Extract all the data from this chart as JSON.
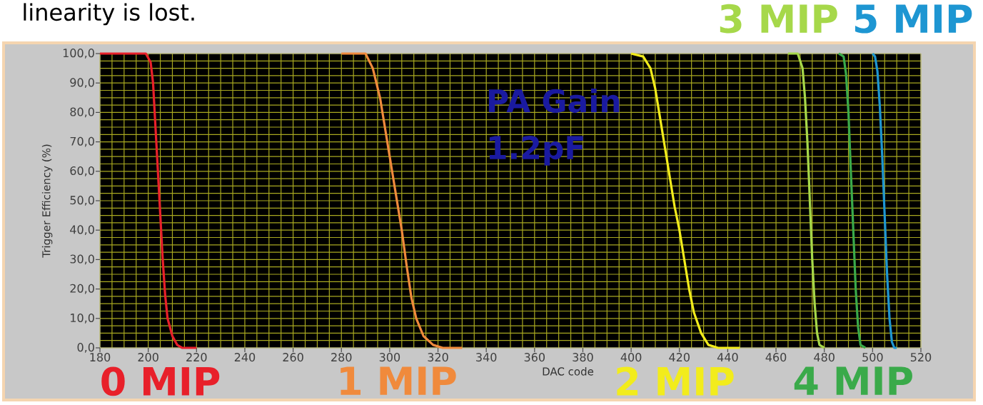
{
  "chart_data": {
    "type": "line",
    "xlabel": "DAC code",
    "ylabel": "Trigger Efficiency (%)",
    "xlim": [
      180,
      520
    ],
    "xticks": [
      180,
      {
        "value": 185,
        "label": null
      },
      {
        "value": 190,
        "label": null
      },
      {
        "value": 195,
        "label": null
      },
      200,
      {
        "value": 205,
        "label": null
      },
      {
        "value": 210,
        "label": null
      },
      {
        "value": 215,
        "label": null
      },
      220,
      {
        "value": 225,
        "label": null
      },
      {
        "value": 230,
        "label": null
      },
      {
        "value": 235,
        "label": null
      },
      240,
      {
        "value": 245,
        "label": null
      },
      {
        "value": 250,
        "label": null
      },
      {
        "value": 255,
        "label": null
      },
      260,
      {
        "value": 265,
        "label": null
      },
      {
        "value": 270,
        "label": null
      },
      {
        "value": 275,
        "label": null
      },
      280,
      {
        "value": 285,
        "label": null
      },
      {
        "value": 290,
        "label": null
      },
      {
        "value": 295,
        "label": null
      },
      300,
      {
        "value": 305,
        "label": null
      },
      {
        "value": 310,
        "label": null
      },
      {
        "value": 315,
        "label": null
      },
      320,
      {
        "value": 325,
        "label": null
      },
      {
        "value": 330,
        "label": null
      },
      {
        "value": 335,
        "label": null
      },
      340,
      {
        "value": 345,
        "label": null
      },
      {
        "value": 350,
        "label": null
      },
      {
        "value": 355,
        "label": null
      },
      360,
      {
        "value": 365,
        "label": null
      },
      {
        "value": 370,
        "label": null
      },
      {
        "value": 375,
        "label": null
      },
      380,
      {
        "value": 385,
        "label": null
      },
      {
        "value": 390,
        "label": null
      },
      {
        "value": 395,
        "label": null
      },
      400,
      {
        "value": 405,
        "label": null
      },
      {
        "value": 410,
        "label": null
      },
      {
        "value": 415,
        "label": null
      },
      420,
      {
        "value": 425,
        "label": null
      },
      {
        "value": 430,
        "label": null
      },
      {
        "value": 435,
        "label": null
      },
      440,
      {
        "value": 445,
        "label": null
      },
      {
        "value": 450,
        "label": null
      },
      {
        "value": 455,
        "label": null
      },
      460,
      {
        "value": 465,
        "label": null
      },
      {
        "value": 470,
        "label": null
      },
      {
        "value": 475,
        "label": null
      },
      480,
      {
        "value": 485,
        "label": null
      },
      {
        "value": 490,
        "label": null
      },
      {
        "value": 495,
        "label": null
      },
      500,
      {
        "value": 505,
        "label": null
      },
      {
        "value": 510,
        "label": null
      },
      {
        "value": 515,
        "label": null
      },
      520
    ],
    "ylim": [
      0,
      100
    ],
    "yticks": [
      {
        "value": 0,
        "label": "0,0"
      },
      {
        "value": 2.5,
        "label": null
      },
      {
        "value": 5,
        "label": null
      },
      {
        "value": 7.5,
        "label": null
      },
      {
        "value": 10,
        "label": "10,0"
      },
      {
        "value": 12.5,
        "label": null
      },
      {
        "value": 15,
        "label": null
      },
      {
        "value": 17.5,
        "label": null
      },
      {
        "value": 20,
        "label": "20,0"
      },
      {
        "value": 22.5,
        "label": null
      },
      {
        "value": 25,
        "label": null
      },
      {
        "value": 27.5,
        "label": null
      },
      {
        "value": 30,
        "label": "30,0"
      },
      {
        "value": 32.5,
        "label": null
      },
      {
        "value": 35,
        "label": null
      },
      {
        "value": 37.5,
        "label": null
      },
      {
        "value": 40,
        "label": "40,0"
      },
      {
        "value": 42.5,
        "label": null
      },
      {
        "value": 45,
        "label": null
      },
      {
        "value": 47.5,
        "label": null
      },
      {
        "value": 50,
        "label": "50,0"
      },
      {
        "value": 52.5,
        "label": null
      },
      {
        "value": 55,
        "label": null
      },
      {
        "value": 57.5,
        "label": null
      },
      {
        "value": 60,
        "label": "60,0"
      },
      {
        "value": 62.5,
        "label": null
      },
      {
        "value": 65,
        "label": null
      },
      {
        "value": 67.5,
        "label": null
      },
      {
        "value": 70,
        "label": "70,0"
      },
      {
        "value": 72.5,
        "label": null
      },
      {
        "value": 75,
        "label": null
      },
      {
        "value": 77.5,
        "label": null
      },
      {
        "value": 80,
        "label": "80,0"
      },
      {
        "value": 82.5,
        "label": null
      },
      {
        "value": 85,
        "label": null
      },
      {
        "value": 87.5,
        "label": null
      },
      {
        "value": 90,
        "label": "90,0"
      },
      {
        "value": 92.5,
        "label": null
      },
      {
        "value": 95,
        "label": null
      },
      {
        "value": 97.5,
        "label": null
      },
      {
        "value": 100,
        "label": "100,0"
      }
    ],
    "grid": true,
    "annotations": [
      "linearity is lost.",
      "PA Gain",
      "1.2pF"
    ],
    "series": [
      {
        "name": "0 MIP",
        "color": "#e8202a",
        "x": [
          180,
          199,
          201,
          202,
          203,
          204,
          205,
          206,
          207,
          208,
          210,
          212,
          214,
          220
        ],
        "values": [
          100,
          100,
          97,
          90,
          75,
          60,
          45,
          30,
          18,
          10,
          4,
          1,
          0,
          0
        ]
      },
      {
        "name": "1 MIP",
        "color": "#f08a3c",
        "x": [
          280,
          290,
          293,
          296,
          298,
          300,
          302,
          303,
          305,
          307,
          309,
          311,
          314,
          318,
          322,
          330
        ],
        "values": [
          100,
          100,
          95,
          85,
          75,
          65,
          55,
          50,
          40,
          28,
          17,
          10,
          4,
          1,
          0,
          0
        ]
      },
      {
        "name": "2 MIP",
        "color": "#f2ec1c",
        "x": [
          400,
          405,
          408,
          410,
          412,
          414,
          416,
          418,
          420,
          422,
          424,
          426,
          429,
          432,
          436,
          445
        ],
        "values": [
          100,
          99,
          95,
          88,
          78,
          68,
          58,
          48,
          40,
          30,
          20,
          12,
          5,
          1,
          0,
          0
        ]
      },
      {
        "name": "3 MIP",
        "color": "#a6d84a",
        "x": [
          465,
          469,
          471,
          472,
          473,
          474,
          475,
          476,
          477,
          478,
          480
        ],
        "values": [
          100,
          100,
          95,
          85,
          70,
          50,
          30,
          15,
          5,
          1,
          0
        ]
      },
      {
        "name": "4 MIP",
        "color": "#3aaa4a",
        "x": [
          486,
          488,
          489,
          490,
          491,
          492,
          493,
          494,
          495,
          497
        ],
        "values": [
          100,
          99,
          93,
          80,
          60,
          40,
          20,
          7,
          1,
          0
        ]
      },
      {
        "name": "5 MIP",
        "color": "#1e96d2",
        "x": [
          500,
          501,
          502,
          503,
          504,
          505,
          506,
          507,
          508,
          509,
          510
        ],
        "values": [
          100,
          99,
          94,
          82,
          65,
          45,
          25,
          10,
          2,
          0,
          0
        ]
      }
    ]
  }
}
